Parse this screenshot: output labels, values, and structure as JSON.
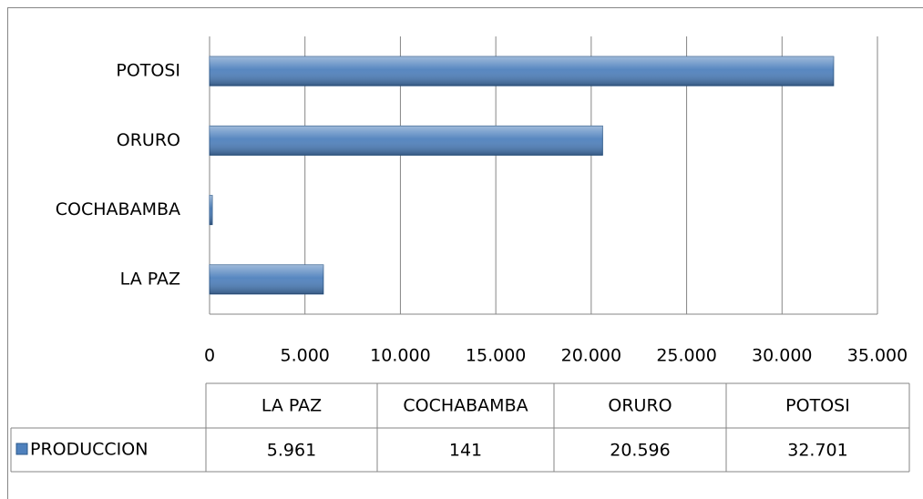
{
  "chart_data": {
    "type": "bar",
    "orientation": "horizontal",
    "categories": [
      "LA PAZ",
      "COCHABAMBA",
      "ORURO",
      "POTOSI"
    ],
    "series": [
      {
        "name": "PRODUCCION",
        "color": "#4f81bd",
        "values": [
          5961,
          141,
          20596,
          32701
        ],
        "value_labels": [
          "5.961",
          "141",
          "20.596",
          "32.701"
        ]
      }
    ],
    "xlim": [
      0,
      35000
    ],
    "xticks": [
      0,
      {
        "value": 5000,
        "label": "5.000"
      },
      {
        "value": 10000,
        "label": "10.000"
      },
      {
        "value": 15000,
        "label": "15.000"
      },
      {
        "value": 20000,
        "label": "20.000"
      },
      {
        "value": 25000,
        "label": "25.000"
      },
      {
        "value": 30000,
        "label": "30.000"
      },
      {
        "value": 35000,
        "label": "35.000"
      }
    ],
    "grid": true,
    "data_table": true
  }
}
